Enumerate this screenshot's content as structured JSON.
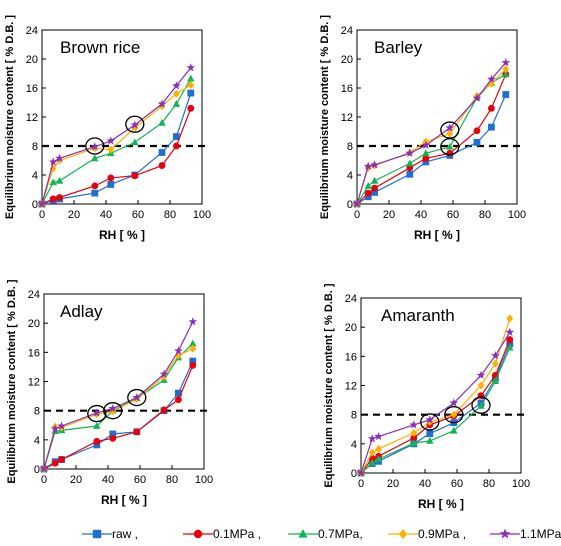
{
  "chart_data": [
    {
      "type": "line",
      "title": "Brown rice",
      "xlabel": "RH [ % ]",
      "ylabel": "Equilibrium moisture content [ % D.B. ]",
      "xlim": [
        0,
        100
      ],
      "ylim": [
        0,
        24
      ],
      "xticks": [
        "0",
        "20",
        "40",
        "60",
        "80",
        "100"
      ],
      "yticks": [
        "0",
        "4",
        "8",
        "12",
        "16",
        "20",
        "24"
      ],
      "reference_line_y": 8,
      "circles": [
        {
          "x": 33,
          "y": 8
        },
        {
          "x": 58,
          "y": 11
        }
      ],
      "series": [
        {
          "name": "raw",
          "x": [
            0,
            7,
            11,
            33,
            43,
            58,
            75,
            84,
            93
          ],
          "y": [
            0,
            0.5,
            0.7,
            1.5,
            2.7,
            4.0,
            7.1,
            9.3,
            15.3
          ]
        },
        {
          "name": "0.1MPa",
          "x": [
            0,
            7,
            11,
            33,
            43,
            58,
            75,
            84,
            93
          ],
          "y": [
            0,
            0.7,
            0.9,
            2.5,
            3.6,
            3.9,
            5.3,
            8.0,
            13.2
          ]
        },
        {
          "name": "0.7MPa",
          "x": [
            0,
            7,
            11,
            33,
            43,
            58,
            75,
            84,
            93
          ],
          "y": [
            0,
            3.0,
            3.2,
            6.3,
            7.0,
            8.5,
            11.2,
            13.8,
            17.3
          ]
        },
        {
          "name": "0.9MPa",
          "x": [
            0,
            7,
            11,
            33,
            43,
            58,
            75,
            84,
            93
          ],
          "y": [
            0,
            4.9,
            6.0,
            7.7,
            7.5,
            10.5,
            13.5,
            15.2,
            16.4
          ]
        },
        {
          "name": "1.1MPa",
          "x": [
            0,
            7,
            11,
            33,
            43,
            58,
            75,
            84,
            93
          ],
          "y": [
            0,
            5.8,
            6.3,
            7.9,
            8.7,
            10.9,
            13.8,
            16.3,
            18.8
          ]
        }
      ]
    },
    {
      "type": "line",
      "title": "Barley",
      "xlabel": "RH [ % ]",
      "ylabel": "Equilibrium moisture content [ % D.B. ]",
      "xlim": [
        0,
        100
      ],
      "ylim": [
        0,
        24
      ],
      "xticks": [
        "0",
        "20",
        "40",
        "60",
        "80",
        "100"
      ],
      "yticks": [
        "0",
        "4",
        "8",
        "12",
        "16",
        "20",
        "24"
      ],
      "reference_line_y": 8,
      "circles": [
        {
          "x": 58,
          "y": 10.2
        },
        {
          "x": 58,
          "y": 7.9
        }
      ],
      "series": [
        {
          "name": "raw",
          "x": [
            0,
            7,
            11,
            33,
            43,
            58,
            75,
            84,
            93
          ],
          "y": [
            0,
            1.0,
            1.6,
            4.1,
            5.8,
            6.7,
            8.5,
            10.6,
            15.1
          ]
        },
        {
          "name": "0.1MPa",
          "x": [
            0,
            7,
            11,
            33,
            43,
            58,
            75,
            84,
            93
          ],
          "y": [
            0,
            1.5,
            2.2,
            5.0,
            6.3,
            7.0,
            10.1,
            13.2,
            17.9
          ]
        },
        {
          "name": "0.7MPa",
          "x": [
            0,
            7,
            11,
            33,
            43,
            58,
            75,
            84,
            93
          ],
          "y": [
            0,
            2.5,
            3.2,
            5.6,
            7.0,
            7.9,
            14.7,
            16.7,
            17.9
          ]
        },
        {
          "name": "0.9MPa",
          "x": [
            0,
            7,
            11,
            33,
            43,
            58,
            75,
            84,
            93
          ],
          "y": [
            0,
            5.0,
            5.3,
            7.1,
            8.6,
            9.7,
            14.9,
            16.6,
            18.6
          ]
        },
        {
          "name": "1.1MPa",
          "x": [
            0,
            7,
            11,
            33,
            43,
            58,
            75,
            84,
            93
          ],
          "y": [
            0,
            5.2,
            5.4,
            7.0,
            8.1,
            10.5,
            14.6,
            17.2,
            19.5
          ]
        }
      ]
    },
    {
      "type": "line",
      "title": "Adlay",
      "xlabel": "RH [ % ]",
      "ylabel": "Equilibrium moisture content [ % D.B. ]",
      "xlim": [
        0,
        100
      ],
      "ylim": [
        0,
        24
      ],
      "xticks": [
        "0",
        "20",
        "40",
        "60",
        "80",
        "100"
      ],
      "yticks": [
        "0",
        "4",
        "8",
        "12",
        "16",
        "20",
        "24"
      ],
      "reference_line_y": 8,
      "circles": [
        {
          "x": 33,
          "y": 7.6
        },
        {
          "x": 43,
          "y": 8.0
        },
        {
          "x": 58,
          "y": 9.8
        }
      ],
      "series": [
        {
          "name": "raw",
          "x": [
            0,
            7,
            11,
            33,
            43,
            58,
            75,
            84,
            93
          ],
          "y": [
            0,
            1.0,
            1.3,
            3.3,
            4.8,
            5.1,
            8.0,
            10.4,
            14.8
          ]
        },
        {
          "name": "0.1MPa",
          "x": [
            0,
            7,
            11,
            33,
            43,
            58,
            75,
            84,
            93
          ],
          "y": [
            0,
            0.8,
            1.3,
            3.8,
            4.2,
            5.1,
            8.1,
            9.5,
            14.2
          ]
        },
        {
          "name": "0.7MPa",
          "x": [
            0,
            7,
            11,
            33,
            43,
            58,
            75,
            84,
            93
          ],
          "y": [
            0,
            5.2,
            5.3,
            5.9,
            8.0,
            9.7,
            12.2,
            15.3,
            17.2
          ]
        },
        {
          "name": "0.9MPa",
          "x": [
            0,
            7,
            11,
            33,
            43,
            58,
            75,
            84,
            93
          ],
          "y": [
            0,
            5.8,
            5.7,
            7.5,
            7.9,
            9.6,
            12.7,
            15.6,
            16.5
          ]
        },
        {
          "name": "1.1MPa",
          "x": [
            0,
            7,
            11,
            33,
            43,
            58,
            75,
            84,
            93
          ],
          "y": [
            0,
            5.5,
            5.9,
            7.7,
            8.3,
            9.8,
            13.0,
            16.2,
            20.2
          ]
        }
      ]
    },
    {
      "type": "line",
      "title": "Amaranth",
      "xlabel": "RH [ % ]",
      "ylabel": "Equilibrium moisture content [ % D.B. ]",
      "xlim": [
        0,
        100
      ],
      "ylim": [
        0,
        24
      ],
      "xticks": [
        "0",
        "20",
        "40",
        "60",
        "80",
        "100"
      ],
      "yticks": [
        "0",
        "4",
        "8",
        "12",
        "16",
        "20",
        "24"
      ],
      "reference_line_y": 8,
      "circles": [
        {
          "x": 43,
          "y": 7.0
        },
        {
          "x": 58,
          "y": 8.0
        },
        {
          "x": 75,
          "y": 9.3
        }
      ],
      "series": [
        {
          "name": "raw",
          "x": [
            0,
            7,
            11,
            33,
            43,
            58,
            75,
            84,
            93
          ],
          "y": [
            0,
            1.3,
            1.6,
            4.0,
            5.4,
            6.9,
            9.6,
            13.0,
            17.7
          ]
        },
        {
          "name": "0.1MPa",
          "x": [
            0,
            7,
            11,
            33,
            43,
            58,
            75,
            84,
            93
          ],
          "y": [
            0,
            2.0,
            2.3,
            4.8,
            6.6,
            7.8,
            10.6,
            13.4,
            18.3
          ]
        },
        {
          "name": "0.7MPa",
          "x": [
            0,
            7,
            11,
            33,
            43,
            58,
            75,
            84,
            93
          ],
          "y": [
            0,
            1.4,
            1.9,
            4.1,
            4.4,
            5.8,
            9.2,
            12.6,
            17.2
          ]
        },
        {
          "name": "0.9MPa",
          "x": [
            0,
            7,
            11,
            33,
            43,
            58,
            75,
            84,
            93
          ],
          "y": [
            0,
            2.8,
            3.3,
            5.5,
            7.0,
            8.0,
            12.0,
            15.0,
            21.2
          ]
        },
        {
          "name": "1.1MPa",
          "x": [
            0,
            7,
            11,
            33,
            43,
            58,
            75,
            84,
            93
          ],
          "y": [
            0,
            4.7,
            5.0,
            6.6,
            7.3,
            9.6,
            13.4,
            16.1,
            19.3
          ]
        }
      ]
    }
  ],
  "legend": [
    {
      "label": "raw ,",
      "color": "#1f6fd1",
      "marker": "square"
    },
    {
      "label": "0.1MPa ,",
      "color": "#e8000b",
      "marker": "circle"
    },
    {
      "label": "0.7MPa,",
      "color": "#13b552",
      "marker": "triangle"
    },
    {
      "label": "0.9MPa ,",
      "color": "#ffb000",
      "marker": "diamond"
    },
    {
      "label": "1.1MPa",
      "color": "#8a2fb7",
      "marker": "star"
    }
  ],
  "series_style": {
    "raw": {
      "color": "#1f6fd1",
      "marker": "square"
    },
    "0.1MPa": {
      "color": "#e8000b",
      "marker": "circle"
    },
    "0.7MPa": {
      "color": "#13b552",
      "marker": "triangle"
    },
    "0.9MPa": {
      "color": "#ffb000",
      "marker": "diamond"
    },
    "1.1MPa": {
      "color": "#8a2fb7",
      "marker": "star"
    }
  }
}
